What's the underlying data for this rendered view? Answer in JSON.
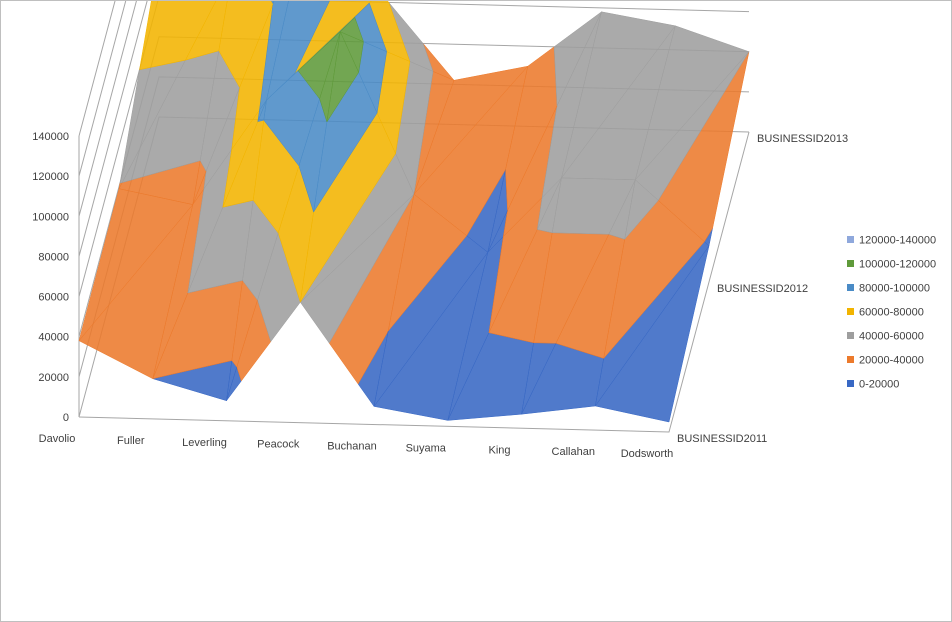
{
  "chart_data": {
    "type": "surface",
    "title": "",
    "categories": [
      "Davolio",
      "Fuller",
      "Leverling",
      "Peacock",
      "Buchanan",
      "Suyama",
      "King",
      "Callahan",
      "Dodsworth"
    ],
    "series": [
      {
        "name": "BUSINESSID2011",
        "values": [
          38000,
          20000,
          10000,
          60000,
          9000,
          3000,
          7000,
          12000,
          5000
        ]
      },
      {
        "name": "BUSINESSID2012",
        "values": [
          39000,
          32000,
          85000,
          120000,
          40000,
          12000,
          50000,
          50000,
          18000
        ]
      },
      {
        "name": "BUSINESSID2013",
        "values": [
          80000,
          75000,
          100000,
          65000,
          22000,
          30000,
          58000,
          52000,
          40000
        ]
      }
    ],
    "zlim": [
      0,
      140000
    ],
    "z_ticks": [
      "0",
      "20000",
      "40000",
      "60000",
      "80000",
      "100000",
      "120000",
      "140000"
    ],
    "legend_position": "right",
    "legend": [
      {
        "label": "120000-140000",
        "color": "#8fa8dc"
      },
      {
        "label": "100000-120000",
        "color": "#5f9a3a"
      },
      {
        "label": "80000-100000",
        "color": "#4a8bc6"
      },
      {
        "label": "60000-80000",
        "color": "#f2b400"
      },
      {
        "label": "40000-60000",
        "color": "#9e9e9e"
      },
      {
        "label": "20000-40000",
        "color": "#ec7a2c"
      },
      {
        "label": "0-20000",
        "color": "#3868c4"
      }
    ],
    "grid": true
  }
}
